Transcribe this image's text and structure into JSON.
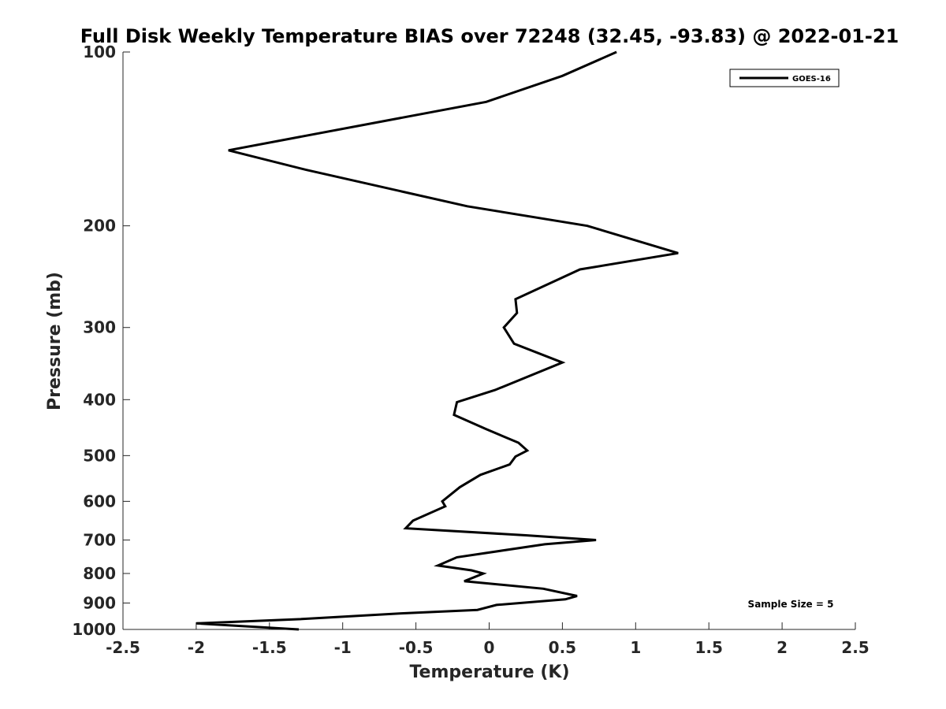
{
  "chart_data": {
    "type": "line",
    "title": "Full Disk Weekly Temperature BIAS over 72248 (32.45, -93.83) @ 2022-01-21",
    "xlabel": "Temperature (K)",
    "ylabel": "Pressure (mb)",
    "xlim": [
      -2.5,
      2.5
    ],
    "ylim": [
      1000,
      100
    ],
    "y_scale": "log",
    "y_reversed": true,
    "grid": false,
    "legend_position": "top-right",
    "x_ticks": [
      -2.5,
      -2,
      -1.5,
      -1,
      -0.5,
      0,
      0.5,
      1,
      1.5,
      2,
      2.5
    ],
    "x_tick_labels": [
      "-2.5",
      "-2",
      "-1.5",
      "-1",
      "-0.5",
      "0",
      "0.5",
      "1",
      "1.5",
      "2",
      "2.5"
    ],
    "y_ticks": [
      100,
      200,
      300,
      400,
      500,
      600,
      700,
      800,
      900,
      1000
    ],
    "y_tick_labels": [
      "100",
      "200",
      "300",
      "400",
      "500",
      "600",
      "700",
      "800",
      "900",
      "1000"
    ],
    "annotation": "Sample Size = 5",
    "series": [
      {
        "name": "GOES-16",
        "color": "#000000",
        "points": [
          {
            "x": 0.87,
            "p": 100
          },
          {
            "x": 0.5,
            "p": 110
          },
          {
            "x": -0.02,
            "p": 122
          },
          {
            "x": -1.78,
            "p": 148
          },
          {
            "x": -1.25,
            "p": 160
          },
          {
            "x": -0.15,
            "p": 185
          },
          {
            "x": 0.67,
            "p": 200
          },
          {
            "x": 1.29,
            "p": 223
          },
          {
            "x": 0.62,
            "p": 238
          },
          {
            "x": 0.18,
            "p": 268
          },
          {
            "x": 0.19,
            "p": 283
          },
          {
            "x": 0.1,
            "p": 300
          },
          {
            "x": 0.17,
            "p": 320
          },
          {
            "x": 0.5,
            "p": 345
          },
          {
            "x": 0.04,
            "p": 385
          },
          {
            "x": -0.22,
            "p": 404
          },
          {
            "x": -0.24,
            "p": 425
          },
          {
            "x": -0.02,
            "p": 450
          },
          {
            "x": 0.2,
            "p": 475
          },
          {
            "x": 0.26,
            "p": 490
          },
          {
            "x": 0.18,
            "p": 502
          },
          {
            "x": 0.14,
            "p": 518
          },
          {
            "x": -0.06,
            "p": 540
          },
          {
            "x": -0.2,
            "p": 567
          },
          {
            "x": -0.32,
            "p": 600
          },
          {
            "x": -0.3,
            "p": 612
          },
          {
            "x": -0.52,
            "p": 648
          },
          {
            "x": -0.57,
            "p": 668
          },
          {
            "x": 0.25,
            "p": 687
          },
          {
            "x": 0.73,
            "p": 700
          },
          {
            "x": 0.38,
            "p": 712
          },
          {
            "x": -0.22,
            "p": 750
          },
          {
            "x": -0.35,
            "p": 775
          },
          {
            "x": -0.12,
            "p": 790
          },
          {
            "x": -0.04,
            "p": 800
          },
          {
            "x": -0.17,
            "p": 825
          },
          {
            "x": 0.37,
            "p": 850
          },
          {
            "x": 0.6,
            "p": 875
          },
          {
            "x": 0.52,
            "p": 887
          },
          {
            "x": 0.05,
            "p": 907
          },
          {
            "x": -0.08,
            "p": 925
          },
          {
            "x": -0.6,
            "p": 938
          },
          {
            "x": -1.3,
            "p": 960
          },
          {
            "x": -2.0,
            "p": 976
          },
          {
            "x": -1.3,
            "p": 1000
          }
        ]
      }
    ]
  }
}
